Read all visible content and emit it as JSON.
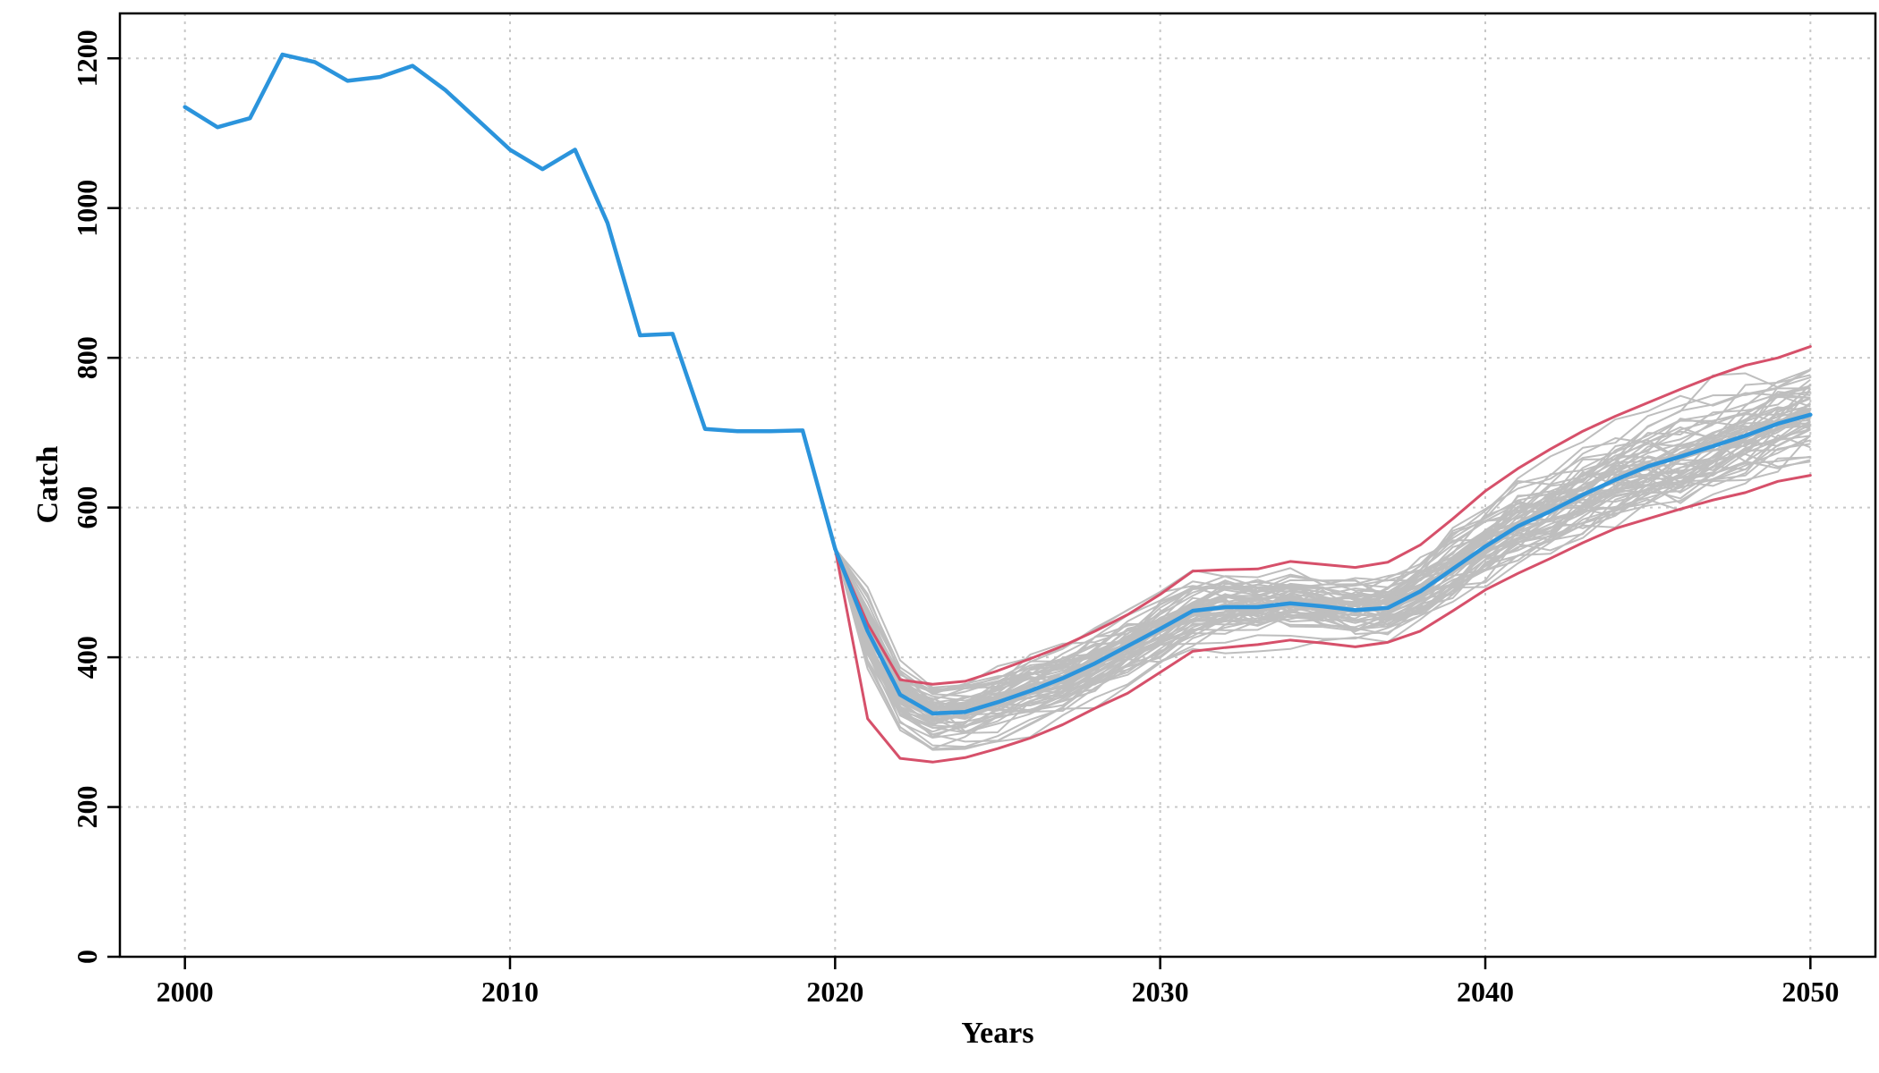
{
  "chart_data": {
    "type": "line",
    "title": "",
    "xlabel": "Years",
    "ylabel": "Catch",
    "xlim": [
      1998,
      2052
    ],
    "ylim": [
      0,
      1260
    ],
    "xticks": [
      2000,
      2010,
      2020,
      2030,
      2040,
      2050
    ],
    "yticks": [
      0,
      200,
      400,
      600,
      800,
      1000,
      1200
    ],
    "grid": true,
    "legend": "none",
    "colors": {
      "median": "#2b94dc",
      "interval": "#d6506a",
      "iterations": "#bebebe",
      "grid": "#c8c8c8"
    },
    "series": [
      {
        "role": "historical",
        "color": "#2b94dc",
        "x": [
          2000,
          2001,
          2002,
          2003,
          2004,
          2005,
          2006,
          2007,
          2008,
          2009,
          2010,
          2011,
          2012,
          2013,
          2014,
          2015,
          2016,
          2017,
          2018,
          2019,
          2020
        ],
        "values": [
          1135,
          1108,
          1120,
          1205,
          1195,
          1170,
          1175,
          1190,
          1158,
          1118,
          1078,
          1052,
          1078,
          980,
          830,
          832,
          705,
          702,
          702,
          703,
          545
        ]
      },
      {
        "role": "projection-median",
        "color": "#2b94dc",
        "x": [
          2020,
          2021,
          2022,
          2023,
          2024,
          2025,
          2026,
          2027,
          2028,
          2029,
          2030,
          2031,
          2032,
          2033,
          2034,
          2035,
          2036,
          2037,
          2038,
          2039,
          2040,
          2041,
          2042,
          2043,
          2044,
          2045,
          2046,
          2047,
          2048,
          2049,
          2050
        ],
        "values": [
          545,
          435,
          350,
          325,
          327,
          340,
          355,
          372,
          392,
          415,
          438,
          462,
          467,
          467,
          472,
          468,
          463,
          466,
          488,
          518,
          548,
          575,
          595,
          617,
          637,
          655,
          668,
          682,
          696,
          712,
          724
        ]
      },
      {
        "role": "projection-upper",
        "color": "#d6506a",
        "x": [
          2020,
          2021,
          2022,
          2023,
          2024,
          2025,
          2026,
          2027,
          2028,
          2029,
          2030,
          2031,
          2032,
          2033,
          2034,
          2035,
          2036,
          2037,
          2038,
          2039,
          2040,
          2041,
          2042,
          2043,
          2044,
          2045,
          2046,
          2047,
          2048,
          2049,
          2050
        ],
        "values": [
          545,
          445,
          370,
          364,
          368,
          382,
          398,
          415,
          435,
          457,
          484,
          515,
          517,
          518,
          528,
          524,
          520,
          527,
          550,
          585,
          622,
          652,
          678,
          702,
          722,
          740,
          758,
          775,
          790,
          800,
          815
        ]
      },
      {
        "role": "projection-lower",
        "color": "#d6506a",
        "x": [
          2020,
          2021,
          2022,
          2023,
          2024,
          2025,
          2026,
          2027,
          2028,
          2029,
          2030,
          2031,
          2032,
          2033,
          2034,
          2035,
          2036,
          2037,
          2038,
          2039,
          2040,
          2041,
          2042,
          2043,
          2044,
          2045,
          2046,
          2047,
          2048,
          2049,
          2050
        ],
        "values": [
          545,
          318,
          265,
          260,
          266,
          278,
          292,
          310,
          332,
          352,
          380,
          408,
          413,
          417,
          423,
          419,
          414,
          420,
          435,
          462,
          490,
          512,
          532,
          553,
          572,
          585,
          598,
          610,
          620,
          635,
          643
        ]
      }
    ],
    "iterations": {
      "count": 60,
      "color": "#bebebe",
      "x_range": [
        2020,
        2050
      ],
      "spread_basis": "projection-lower to projection-upper"
    }
  }
}
